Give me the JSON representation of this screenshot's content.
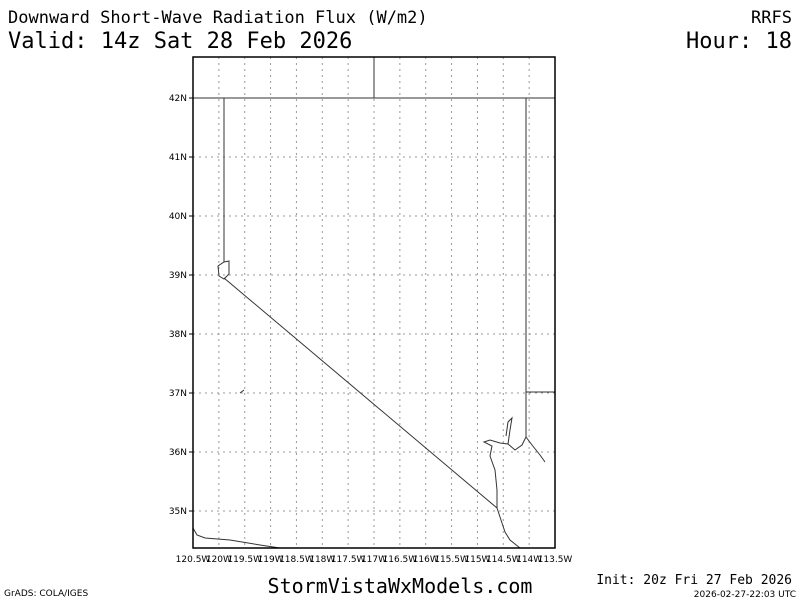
{
  "header": {
    "title": "Downward Short-Wave Radiation Flux (W/m2)",
    "model": "RRFS",
    "valid": "Valid: 14z Sat 28 Feb 2026",
    "hour": "Hour: 18"
  },
  "map": {
    "lon_labels": [
      "120.5W",
      "120W",
      "119.5W",
      "119W",
      "118.5W",
      "118W",
      "117.5W",
      "117W",
      "116.5W",
      "116W",
      "115.5W",
      "115W",
      "114.5W",
      "114W",
      "113.5W"
    ],
    "lat_labels": [
      "42N",
      "41N",
      "40N",
      "39N",
      "38N",
      "37N",
      "36N",
      "35N"
    ]
  },
  "footer": {
    "credit": "GrADS: COLA/IGES",
    "site": "StormVistaWxModels.com",
    "init": "Init: 20z Fri 27 Feb 2026",
    "timestamp": "2026-02-27-22:03 UTC"
  }
}
